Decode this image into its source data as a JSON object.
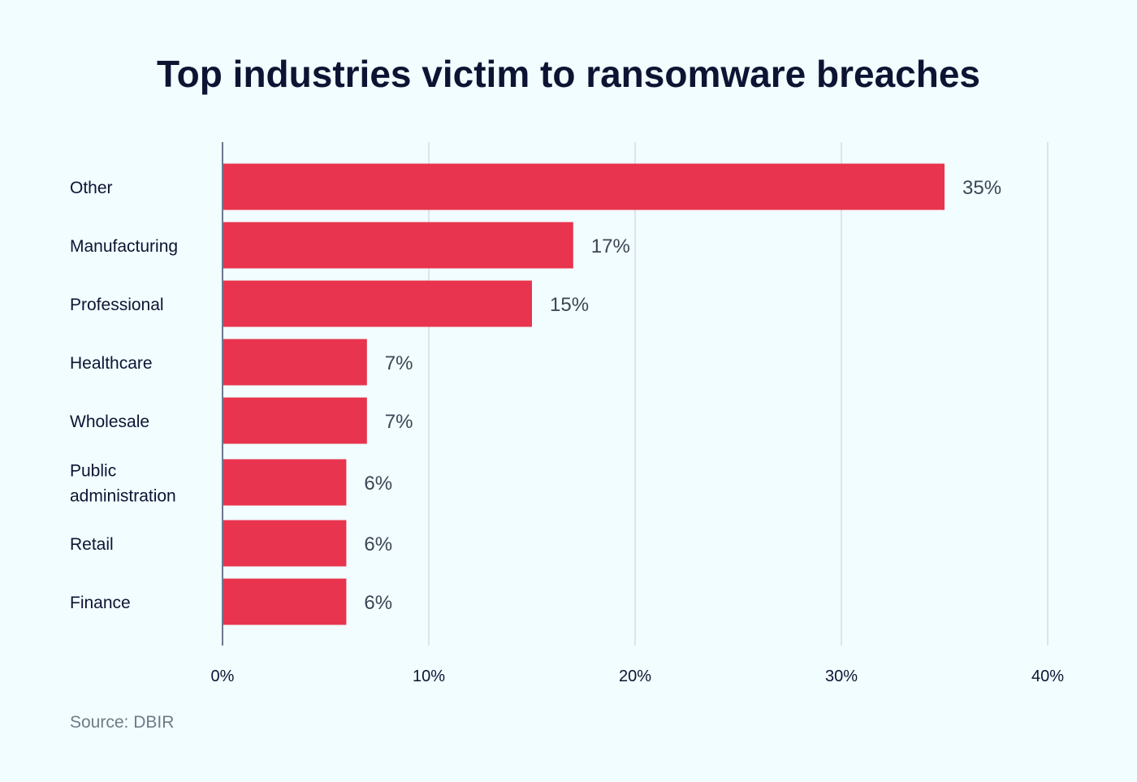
{
  "chart_data": {
    "type": "bar",
    "orientation": "horizontal",
    "title": "Top industries victim to ransomware breaches",
    "categories": [
      "Other",
      "Manufacturing",
      "Professional",
      "Healthcare",
      "Wholesale",
      "Public administration",
      "Retail",
      "Finance"
    ],
    "category_lines": [
      [
        "Other"
      ],
      [
        "Manufacturing"
      ],
      [
        "Professional"
      ],
      [
        "Healthcare"
      ],
      [
        "Wholesale"
      ],
      [
        "Public",
        "administration"
      ],
      [
        "Retail"
      ],
      [
        "Finance"
      ]
    ],
    "values": [
      35,
      17,
      15,
      7,
      7,
      6,
      6,
      6
    ],
    "data_labels": [
      "35%",
      "17%",
      "15%",
      "7%",
      "7%",
      "6%",
      "6%",
      "6%"
    ],
    "xlim": [
      0,
      40
    ],
    "xticks": [
      0,
      10,
      20,
      30,
      40
    ],
    "xtick_labels": [
      "0%",
      "10%",
      "20%",
      "30%",
      "40%"
    ],
    "grid": true,
    "colors": {
      "bar": "#e8344e",
      "grid": "#dde5ea",
      "axis": "#6b7890",
      "background": "#f1fdff"
    }
  },
  "source": "Source: DBIR"
}
